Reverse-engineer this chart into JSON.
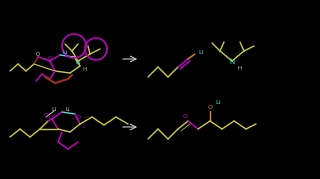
{
  "bg": "#000000",
  "col_yellow": "#cccc44",
  "col_magenta": "#cc00cc",
  "col_cyan": "#44dddd",
  "col_orange": "#dd8833",
  "col_white": "#cccccc",
  "col_purple": "#bb00bb",
  "col_red": "#993311",
  "col_green": "#88cc44"
}
